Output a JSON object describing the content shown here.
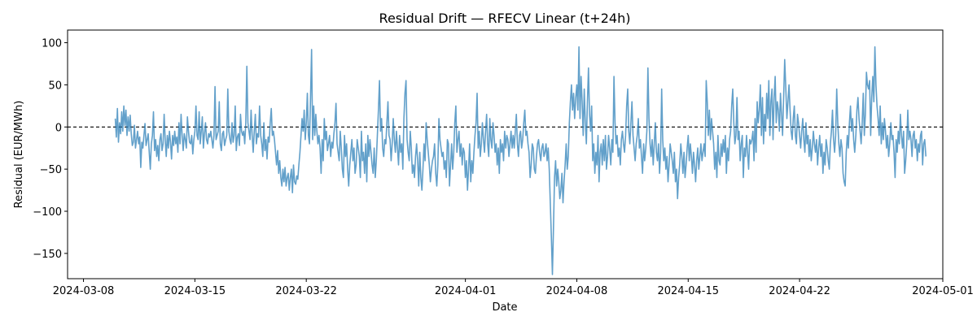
{
  "chart_data": {
    "type": "line",
    "title": "Residual Drift — RFECV Linear (t+24h)",
    "xlabel": "Date",
    "ylabel": "Residual (EUR/MWh)",
    "x_axis": {
      "type": "date",
      "range": [
        "2024-03-07",
        "2024-05-01"
      ],
      "tick_dates": [
        "2024-03-08",
        "2024-03-15",
        "2024-03-22",
        "2024-04-01",
        "2024-04-08",
        "2024-04-15",
        "2024-04-22",
        "2024-05-01"
      ],
      "tick_labels": [
        "2024-03-08",
        "2024-03-15",
        "2024-03-22",
        "2024-04-01",
        "2024-04-08",
        "2024-04-15",
        "2024-04-22",
        "2024-05-01"
      ]
    },
    "y_axis": {
      "range": [
        -180,
        115
      ],
      "ticks": [
        100,
        50,
        0,
        -50,
        -100,
        -150
      ],
      "tick_labels": [
        "100",
        "50",
        "0",
        "−50",
        "−100",
        "−150"
      ]
    },
    "reference_line": {
      "y": 0,
      "style": "dashed",
      "color": "#000000"
    },
    "line_color": "#1f77b4",
    "line_opacity": 0.7,
    "grid": false,
    "legend": "none",
    "x": [
      "2024-03-10",
      "2024-03-11",
      "2024-03-12",
      "2024-03-13",
      "2024-03-14",
      "2024-03-15",
      "2024-03-16",
      "2024-03-17",
      "2024-03-18",
      "2024-03-19",
      "2024-03-20",
      "2024-03-21",
      "2024-03-22",
      "2024-03-23",
      "2024-03-24",
      "2024-03-25",
      "2024-03-26",
      "2024-03-27",
      "2024-03-28",
      "2024-03-29",
      "2024-03-30",
      "2024-03-31",
      "2024-04-01",
      "2024-04-02",
      "2024-04-03",
      "2024-04-04",
      "2024-04-05",
      "2024-04-06",
      "2024-04-07",
      "2024-04-08",
      "2024-04-09",
      "2024-04-10",
      "2024-04-11",
      "2024-04-12",
      "2024-04-13",
      "2024-04-14",
      "2024-04-15",
      "2024-04-16",
      "2024-04-17",
      "2024-04-18",
      "2024-04-19",
      "2024-04-20",
      "2024-04-21",
      "2024-04-22",
      "2024-04-23",
      "2024-04-24",
      "2024-04-25",
      "2024-04-26",
      "2024-04-27",
      "2024-04-28",
      "2024-04-29"
    ],
    "series": [
      {
        "values": [
          [
            10,
            -12,
            22,
            -18,
            5,
            -8,
            18,
            -5,
            25,
            2,
            20,
            -10,
            12,
            -5,
            14
          ],
          [
            -8,
            -22,
            -18,
            2,
            -25,
            -15,
            -5,
            -20,
            -12,
            -48,
            -18,
            -25,
            -10,
            4,
            -22
          ],
          [
            -15,
            -8,
            -30,
            -50,
            -20,
            -10,
            18,
            -28,
            -15,
            -35,
            -22,
            -40,
            -15,
            -8,
            -28
          ],
          [
            -20,
            15,
            -15,
            -35,
            -10,
            -25,
            -5,
            -18,
            -38,
            -10,
            -22,
            -5,
            -20,
            -12,
            -30
          ],
          [
            5,
            -20,
            15,
            -10,
            -28,
            -8,
            -15,
            -25,
            12,
            -5,
            -18,
            -20,
            -10,
            -32,
            -15
          ],
          [
            -5,
            25,
            -10,
            -15,
            18,
            -20,
            -5,
            12,
            -25,
            -8,
            5,
            -15,
            -20,
            -8,
            -12
          ],
          [
            -5,
            -15,
            -25,
            -10,
            48,
            -15,
            -10,
            -5,
            30,
            -20,
            -28,
            -8,
            -5,
            -22,
            -15
          ],
          [
            -10,
            45,
            -5,
            -15,
            -20,
            5,
            -18,
            -10,
            25,
            -28,
            -12,
            -8,
            -22,
            15,
            -5
          ],
          [
            -10,
            -5,
            -20,
            5,
            72,
            5,
            -5,
            -15,
            20,
            -10,
            -30,
            -5,
            15,
            -20,
            -8
          ],
          [
            -12,
            25,
            -10,
            -20,
            -35,
            5,
            -28,
            -15,
            -38,
            -12,
            -18,
            5,
            22,
            -10,
            -5
          ],
          [
            -15,
            -30,
            -45,
            -28,
            -55,
            -40,
            -60,
            -70,
            -50,
            -65,
            -48,
            -70,
            -60,
            -55,
            -75
          ],
          [
            -60,
            -50,
            -78,
            -45,
            -65,
            -68,
            -58,
            -62,
            -45,
            -30,
            -10,
            10,
            -5,
            20,
            -15
          ],
          [
            5,
            40,
            -10,
            -20,
            35,
            92,
            -15,
            25,
            -10,
            15,
            -5,
            -20,
            -10,
            -25,
            -55
          ],
          [
            -15,
            -40,
            10,
            -15,
            -5,
            -28,
            -20,
            -10,
            -35,
            -18,
            -25,
            -8,
            5,
            28,
            -20
          ],
          [
            -30,
            -40,
            -5,
            -25,
            -50,
            -60,
            -10,
            -35,
            -20,
            -50,
            -70,
            -45,
            -30,
            -15,
            -40
          ],
          [
            -25,
            -55,
            -45,
            -15,
            -25,
            -35,
            -60,
            -5,
            -40,
            -30,
            -55,
            -20,
            -65,
            -10,
            -35
          ],
          [
            -15,
            -30,
            -45,
            -55,
            -25,
            -60,
            -40,
            -10,
            20,
            55,
            -5,
            10,
            -25,
            -35,
            -15
          ],
          [
            -20,
            5,
            30,
            -10,
            -15,
            -40,
            -20,
            10,
            -15,
            -30,
            -5,
            -25,
            -45,
            -10,
            -30
          ],
          [
            -20,
            -50,
            10,
            40,
            55,
            -15,
            -30,
            -40,
            -5,
            -25,
            -55,
            -45,
            -60,
            -35,
            -20
          ],
          [
            -40,
            -70,
            -30,
            -60,
            -75,
            -50,
            -20,
            -40,
            5,
            -15,
            -30,
            -45,
            -65,
            -50,
            -40
          ],
          [
            -35,
            -20,
            -55,
            -70,
            -45,
            10,
            -15,
            -25,
            -35,
            -30,
            -50,
            -40,
            -60,
            -15,
            -20
          ],
          [
            -70,
            -45,
            -20,
            -50,
            -30,
            5,
            25,
            -30,
            -15,
            -5,
            -35,
            -20,
            -45,
            -25,
            -30
          ],
          [
            -60,
            -40,
            -75,
            -50,
            -20,
            -65,
            -40,
            -55,
            -30,
            -10,
            5,
            40,
            -25,
            -5,
            -35
          ],
          [
            -20,
            5,
            -15,
            -30,
            -5,
            15,
            -20,
            -35,
            10,
            -15,
            -25,
            5,
            -10,
            -30,
            -20
          ],
          [
            -45,
            -25,
            -55,
            -15,
            -30,
            -20,
            -40,
            -5,
            -25,
            -10,
            -15,
            -35,
            -20,
            -5,
            -25
          ],
          [
            -10,
            -25,
            -5,
            15,
            -20,
            -35,
            -10,
            -5,
            -25,
            -15,
            5,
            20,
            -10,
            -5,
            -20
          ],
          [
            -30,
            -60,
            -45,
            -20,
            -25,
            -50,
            -55,
            -35,
            -20,
            -15,
            -30,
            -40,
            -25,
            -20,
            -35
          ],
          [
            -30,
            -20,
            -40,
            -25,
            -50,
            -90,
            -130,
            -175,
            -120,
            -60,
            -40,
            -70,
            -50,
            -65,
            -85
          ],
          [
            -75,
            -55,
            -90,
            -65,
            -45,
            -20,
            -50,
            -35,
            5,
            30,
            50,
            20,
            40,
            10,
            35
          ],
          [
            50,
            20,
            95,
            10,
            60,
            30,
            -10,
            45,
            5,
            -20,
            30,
            70,
            15,
            -5,
            25
          ],
          [
            -40,
            -20,
            -55,
            -30,
            -45,
            -10,
            -65,
            -30,
            -20,
            -45,
            -15,
            -40,
            -10,
            -50,
            -35
          ],
          [
            -10,
            -25,
            -45,
            -15,
            -30,
            60,
            5,
            -20,
            -10,
            -35,
            -25,
            -45,
            -15,
            -5,
            -20
          ],
          [
            -30,
            -10,
            25,
            45,
            -5,
            -20,
            5,
            30,
            -10,
            -25,
            -40,
            -20,
            -10,
            10,
            -25
          ],
          [
            -15,
            -35,
            -55,
            -20,
            -40,
            -25,
            -5,
            70,
            10,
            -20,
            -35,
            -15,
            -45,
            -20,
            5
          ],
          [
            -30,
            -40,
            -20,
            -55,
            -30,
            45,
            -15,
            -40,
            -25,
            -50,
            -35,
            -65,
            -45,
            -20,
            -30
          ],
          [
            -40,
            -55,
            -30,
            -65,
            -50,
            -85,
            -60,
            -45,
            -20,
            -35,
            -55,
            -30,
            -60,
            -45,
            -25
          ],
          [
            -10,
            -40,
            -20,
            -35,
            -55,
            -30,
            -45,
            -65,
            -40,
            -25,
            -50,
            -35,
            -20,
            -40,
            -30
          ],
          [
            -20,
            -35,
            55,
            30,
            -10,
            20,
            -15,
            10,
            -5,
            -20,
            -50,
            -30,
            -60,
            -10,
            -40
          ],
          [
            -45,
            -20,
            -35,
            -15,
            -30,
            -10,
            -55,
            -25,
            -40,
            -15,
            -5,
            25,
            45,
            5,
            -20
          ],
          [
            -10,
            35,
            -15,
            -5,
            -40,
            -20,
            -10,
            -60,
            -25,
            -35,
            -10,
            -30,
            -50,
            -15,
            -20
          ],
          [
            -15,
            -5,
            -40,
            10,
            -30,
            30,
            5,
            20,
            50,
            -10,
            35,
            -20,
            15,
            -5,
            40
          ],
          [
            10,
            55,
            -10,
            30,
            45,
            -15,
            35,
            60,
            5,
            30,
            20,
            -5,
            40,
            15,
            -10
          ],
          [
            35,
            80,
            45,
            10,
            30,
            50,
            20,
            -5,
            -15,
            10,
            25,
            -10,
            -20,
            15,
            5
          ],
          [
            -10,
            -25,
            -5,
            10,
            -15,
            -30,
            5,
            -20,
            -10,
            -35,
            -15,
            -40,
            -25,
            -5,
            -20
          ],
          [
            -30,
            -15,
            -45,
            -25,
            -10,
            -35,
            -20,
            -55,
            -30,
            -45,
            -15,
            -25,
            -40,
            -50,
            -20
          ],
          [
            -5,
            20,
            -15,
            -30,
            -10,
            45,
            5,
            -20,
            -35,
            -15,
            -25,
            -55,
            -65,
            -70,
            -30
          ],
          [
            -10,
            -25,
            5,
            25,
            -5,
            10,
            -15,
            -30,
            -10,
            20,
            35,
            10,
            -5,
            -20,
            5
          ],
          [
            40,
            -10,
            15,
            65,
            50,
            45,
            55,
            -10,
            35,
            60,
            30,
            95,
            50,
            25,
            10
          ],
          [
            -10,
            25,
            -20,
            5,
            -15,
            10,
            -5,
            -25,
            -10,
            -35,
            -20,
            5,
            -15,
            -10,
            -30
          ],
          [
            -60,
            -15,
            -30,
            -5,
            -20,
            15,
            -10,
            -25,
            -5,
            -55,
            -40,
            -20,
            20,
            -15,
            -5
          ],
          [
            -15,
            -35,
            -10,
            -5,
            -25,
            -15,
            -40,
            -20,
            -30,
            -10,
            -5,
            -45,
            -20,
            -15,
            -35
          ]
        ]
      }
    ]
  }
}
